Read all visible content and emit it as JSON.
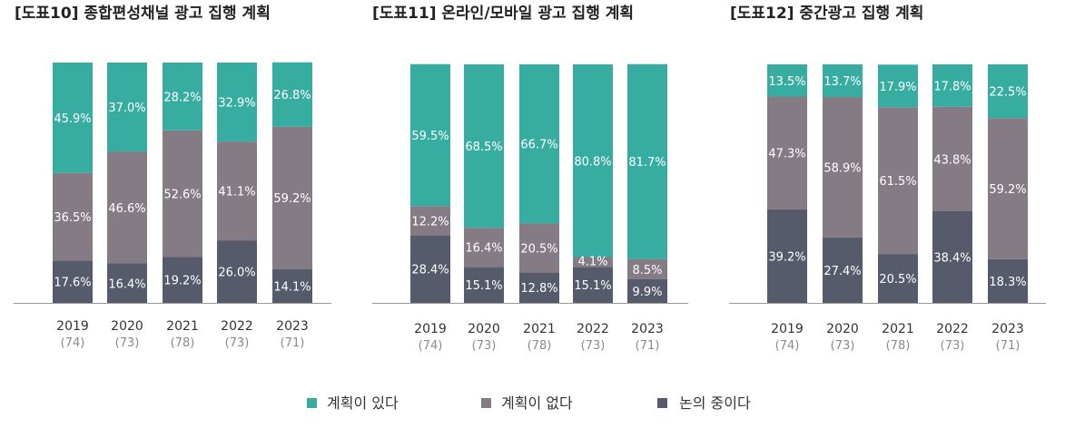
{
  "chart_data": [
    {
      "type": "bar",
      "stacked": true,
      "title": "[도표10] 종합편성채널 광고 집행 계획",
      "categories": [
        "2019",
        "2020",
        "2021",
        "2022",
        "2023"
      ],
      "sample_sizes": [
        "(74)",
        "(73)",
        "(78)",
        "(73)",
        "(71)"
      ],
      "series": [
        {
          "name": "논의 중이다",
          "values": [
            17.6,
            16.4,
            19.2,
            26.0,
            14.1
          ],
          "labels": [
            "17.6%",
            "16.4%",
            "19.2%",
            "26.0%",
            "14.1%"
          ]
        },
        {
          "name": "계획이 없다",
          "values": [
            36.5,
            46.6,
            52.6,
            41.1,
            59.2
          ],
          "labels": [
            "36.5%",
            "46.6%",
            "52.6%",
            "41.1%",
            "59.2%"
          ]
        },
        {
          "name": "계획이 있다",
          "values": [
            45.9,
            37.0,
            28.2,
            32.9,
            26.8
          ],
          "labels": [
            "45.9%",
            "37.0%",
            "28.2%",
            "32.9%",
            "26.8%"
          ]
        }
      ],
      "ylim": [
        0,
        100
      ]
    },
    {
      "type": "bar",
      "stacked": true,
      "title": "[도표11] 온라인/모바일 광고 집행 계획",
      "categories": [
        "2019",
        "2020",
        "2021",
        "2022",
        "2023"
      ],
      "sample_sizes": [
        "(74)",
        "(73)",
        "(78)",
        "(73)",
        "(71)"
      ],
      "series": [
        {
          "name": "논의 중이다",
          "values": [
            28.4,
            15.1,
            12.8,
            15.1,
            9.9
          ],
          "labels": [
            "28.4%",
            "15.1%",
            "12.8%",
            "15.1%",
            "9.9%"
          ]
        },
        {
          "name": "계획이 없다",
          "values": [
            12.2,
            16.4,
            20.5,
            4.1,
            8.5
          ],
          "labels": [
            "12.2%",
            "16.4%",
            "20.5%",
            "4.1%",
            "8.5%"
          ]
        },
        {
          "name": "계획이 있다",
          "values": [
            59.5,
            68.5,
            66.7,
            80.8,
            81.7
          ],
          "labels": [
            "59.5%",
            "68.5%",
            "66.7%",
            "80.8%",
            "81.7%"
          ]
        }
      ],
      "ylim": [
        0,
        100
      ]
    },
    {
      "type": "bar",
      "stacked": true,
      "title": "[도표12]  중간광고 집행 계획",
      "categories": [
        "2019",
        "2020",
        "2021",
        "2022",
        "2023"
      ],
      "sample_sizes": [
        "(74)",
        "(73)",
        "(78)",
        "(73)",
        "(71)"
      ],
      "series": [
        {
          "name": "논의 중이다",
          "values": [
            39.2,
            27.4,
            20.5,
            38.4,
            18.3
          ],
          "labels": [
            "39.2%",
            "27.4%",
            "20.5%",
            "38.4%",
            "18.3%"
          ]
        },
        {
          "name": "계획이 없다",
          "values": [
            47.3,
            58.9,
            61.5,
            43.8,
            59.2
          ],
          "labels": [
            "47.3%",
            "58.9%",
            "61.5%",
            "43.8%",
            "59.2%"
          ]
        },
        {
          "name": "계획이 있다",
          "values": [
            13.5,
            13.7,
            17.9,
            17.8,
            22.5
          ],
          "labels": [
            "13.5%",
            "13.7%",
            "17.9%",
            "17.8%",
            "22.5%"
          ]
        }
      ],
      "ylim": [
        0,
        100
      ]
    }
  ],
  "legend": [
    {
      "label": "계획이 있다",
      "color": "#37ada2"
    },
    {
      "label": "계획이 없다",
      "color": "#857b85"
    },
    {
      "label": "논의 중이다",
      "color": "#565b6b"
    }
  ],
  "series_colors": {
    "논의 중이다": "#565b6b",
    "계획이 없다": "#857b85",
    "계획이 있다": "#37ada2"
  }
}
